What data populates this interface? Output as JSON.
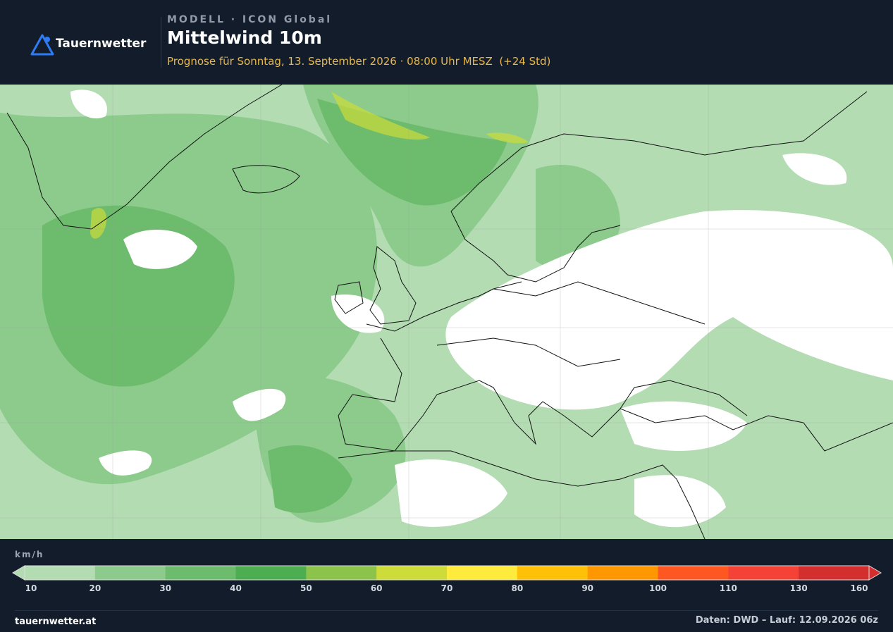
{
  "header": {
    "brand": "Tauernwetter",
    "model": "MODELL · ICON Global",
    "title": "Mittelwind 10m",
    "subtitle": "Prognose für Sonntag, 13. September 2026 · 08:00 Uhr MESZ  (+24 Std)"
  },
  "legend": {
    "unit": "km/h",
    "ticks": [
      10,
      20,
      30,
      40,
      50,
      60,
      70,
      80,
      90,
      100,
      110,
      130,
      160
    ],
    "colors": [
      "#b3dcb3",
      "#8ccb8c",
      "#6dbb6d",
      "#4cae50",
      "#8cc34a",
      "#cddc39",
      "#ffeb3b",
      "#ffc107",
      "#ff9800",
      "#ff5722",
      "#f44336",
      "#d32f2f"
    ]
  },
  "footer": {
    "site": "tauernwetter.at",
    "source": "Daten: DWD – Lauf: 12.09.2026 06z"
  }
}
